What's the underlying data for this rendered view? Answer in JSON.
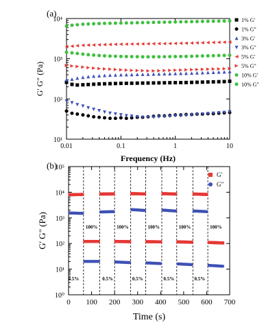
{
  "chart_data": [
    {
      "type": "scatter",
      "panel_label": "(a)",
      "xlabel": "Frequency (Hz)",
      "ylabel": "G' G\" (Pa)",
      "xscale": "log",
      "yscale": "log",
      "xlim": [
        0.01,
        10
      ],
      "ylim": [
        10,
        10000
      ],
      "x_ticks": [
        0.01,
        0.1,
        1,
        10
      ],
      "x_tick_labels": [
        "0.01",
        "0.1",
        "1",
        "10"
      ],
      "y_ticks": [
        10,
        100,
        1000,
        10000
      ],
      "y_tick_labels": [
        "10¹",
        "10²",
        "10³",
        "10⁴"
      ],
      "legend_position": "right",
      "series": [
        {
          "name": "1% G'",
          "marker": "square",
          "color": "#000000",
          "filled": true,
          "x": [
            0.01,
            0.0126,
            0.0158,
            0.02,
            0.0251,
            0.0316,
            0.0398,
            0.0501,
            0.0631,
            0.0794,
            0.1,
            0.126,
            0.158,
            0.2,
            0.251,
            0.316,
            0.398,
            0.501,
            0.631,
            0.794,
            1,
            1.26,
            1.58,
            2,
            2.51,
            3.16,
            3.98,
            5.01,
            6.31,
            7.94,
            10
          ],
          "y": [
            260,
            230,
            222,
            225,
            228,
            232,
            236,
            238,
            240,
            242,
            244,
            245,
            246,
            247,
            248,
            249,
            250,
            251,
            252,
            253,
            254,
            255,
            256,
            258,
            260,
            262,
            264,
            266,
            268,
            270,
            275
          ]
        },
        {
          "name": "1% G\"",
          "marker": "circle",
          "color": "#000000",
          "filled": true,
          "x": [
            0.01,
            0.0126,
            0.0158,
            0.02,
            0.0251,
            0.0316,
            0.0398,
            0.0501,
            0.0631,
            0.0794,
            0.1,
            0.126,
            0.158,
            0.2,
            0.251,
            0.316,
            0.398,
            0.501,
            0.631,
            0.794,
            1,
            1.26,
            1.58,
            2,
            2.51,
            3.16,
            3.98,
            5.01,
            6.31,
            7.94,
            10
          ],
          "y": [
            50,
            44,
            42,
            40,
            38,
            36,
            35,
            34,
            33,
            33,
            34,
            33,
            34,
            35,
            35,
            36,
            37,
            38,
            38,
            39,
            40,
            40,
            41,
            41,
            42,
            42,
            43,
            43,
            44,
            45,
            46
          ]
        },
        {
          "name": "3% G'",
          "marker": "triangle-up",
          "color": "#3f51b5",
          "filled": true,
          "x": [
            0.01,
            0.0126,
            0.0158,
            0.02,
            0.0251,
            0.0316,
            0.0398,
            0.0501,
            0.0631,
            0.0794,
            0.1,
            0.126,
            0.158,
            0.2,
            0.251,
            0.316,
            0.398,
            0.501,
            0.631,
            0.794,
            1,
            1.26,
            1.58,
            2,
            2.51,
            3.16,
            3.98,
            5.01,
            6.31,
            7.94,
            10
          ],
          "y": [
            300,
            310,
            330,
            345,
            360,
            370,
            378,
            385,
            390,
            395,
            400,
            402,
            405,
            408,
            410,
            413,
            416,
            419,
            422,
            425,
            428,
            432,
            436,
            440,
            445,
            450,
            455,
            460,
            465,
            470,
            480
          ]
        },
        {
          "name": "3% G\"",
          "marker": "triangle-down",
          "color": "#3f51b5",
          "filled": true,
          "x": [
            0.01,
            0.0126,
            0.0158,
            0.02,
            0.0251,
            0.0316,
            0.0398,
            0.0501,
            0.0631,
            0.0794,
            0.1,
            0.126,
            0.158,
            0.2,
            0.251,
            0.316,
            0.398,
            0.501,
            0.631,
            0.794,
            1,
            1.26,
            1.58,
            2,
            2.51,
            3.16,
            3.98,
            5.01,
            6.31,
            7.94,
            10
          ],
          "y": [
            88,
            80,
            72,
            66,
            60,
            55,
            51,
            47,
            44,
            42,
            40,
            38,
            37,
            36,
            35,
            35,
            35,
            36,
            36,
            37,
            38,
            38,
            39,
            40,
            41,
            42,
            43,
            44,
            45,
            46,
            48
          ]
        },
        {
          "name": "5% G'",
          "marker": "triangle-left",
          "color": "#e53935",
          "filled": true,
          "x": [
            0.01,
            0.0126,
            0.0158,
            0.02,
            0.0251,
            0.0316,
            0.0398,
            0.0501,
            0.0631,
            0.0794,
            0.1,
            0.126,
            0.158,
            0.2,
            0.251,
            0.316,
            0.398,
            0.501,
            0.631,
            0.794,
            1,
            1.26,
            1.58,
            2,
            2.51,
            3.16,
            3.98,
            5.01,
            6.31,
            7.94,
            10
          ],
          "y": [
            2000,
            2050,
            2100,
            2150,
            2180,
            2200,
            2220,
            2240,
            2260,
            2280,
            2300,
            2310,
            2320,
            2330,
            2340,
            2350,
            2360,
            2370,
            2380,
            2390,
            2400,
            2420,
            2440,
            2460,
            2480,
            2500,
            2520,
            2540,
            2560,
            2580,
            2600
          ]
        },
        {
          "name": "5% G\"",
          "marker": "triangle-right",
          "color": "#e53935",
          "filled": true,
          "x": [
            0.01,
            0.0126,
            0.0158,
            0.02,
            0.0251,
            0.0316,
            0.0398,
            0.0501,
            0.0631,
            0.0794,
            0.1,
            0.126,
            0.158,
            0.2,
            0.251,
            0.316,
            0.398,
            0.501,
            0.631,
            0.794,
            1,
            1.26,
            1.58,
            2,
            2.51,
            3.16,
            3.98,
            5.01,
            6.31,
            7.94,
            10
          ],
          "y": [
            680,
            660,
            640,
            620,
            600,
            585,
            570,
            560,
            550,
            540,
            530,
            522,
            515,
            510,
            505,
            500,
            500,
            505,
            510,
            515,
            520,
            525,
            530,
            535,
            540,
            545,
            550,
            555,
            560,
            565,
            570
          ]
        },
        {
          "name": "10% G'",
          "marker": "circle",
          "color": "#3fbf3f",
          "filled": true,
          "x": [
            0.01,
            0.0126,
            0.0158,
            0.02,
            0.0251,
            0.0316,
            0.0398,
            0.0501,
            0.0631,
            0.0794,
            0.1,
            0.126,
            0.158,
            0.2,
            0.251,
            0.316,
            0.398,
            0.501,
            0.631,
            0.794,
            1,
            1.26,
            1.58,
            2,
            2.51,
            3.16,
            3.98,
            5.01,
            6.31,
            7.94,
            10
          ],
          "y": [
            6500,
            6800,
            7000,
            7200,
            7300,
            7400,
            7500,
            7550,
            7600,
            7650,
            7700,
            7750,
            7800,
            7850,
            7900,
            7950,
            8000,
            8050,
            8100,
            8150,
            8200,
            8250,
            8300,
            8350,
            8400,
            8450,
            8500,
            8550,
            8600,
            8650,
            8700
          ]
        },
        {
          "name": "10% G\"",
          "marker": "circle",
          "color": "#3fbf3f",
          "filled": true,
          "x": [
            0.01,
            0.0126,
            0.0158,
            0.02,
            0.0251,
            0.0316,
            0.0398,
            0.0501,
            0.0631,
            0.0794,
            0.1,
            0.126,
            0.158,
            0.2,
            0.251,
            0.316,
            0.398,
            0.501,
            0.631,
            0.794,
            1,
            1.26,
            1.58,
            2,
            2.51,
            3.16,
            3.98,
            5.01,
            6.31,
            7.94,
            10
          ],
          "y": [
            1450,
            1400,
            1350,
            1300,
            1260,
            1230,
            1200,
            1180,
            1160,
            1150,
            1140,
            1130,
            1125,
            1120,
            1118,
            1115,
            1115,
            1118,
            1120,
            1125,
            1130,
            1135,
            1140,
            1150,
            1160,
            1170,
            1180,
            1190,
            1200,
            1210,
            1220
          ]
        }
      ]
    },
    {
      "type": "scatter",
      "panel_label": "(b)",
      "xlabel": "Time (s)",
      "ylabel": "G' G\" (Pa)",
      "xscale": "linear",
      "yscale": "log",
      "xlim": [
        0,
        700
      ],
      "ylim": [
        1,
        100000
      ],
      "x_ticks": [
        0,
        100,
        200,
        300,
        400,
        500,
        600,
        700
      ],
      "x_tick_labels": [
        "0",
        "100",
        "200",
        "300",
        "400",
        "500",
        "600",
        "700"
      ],
      "y_ticks": [
        1,
        10,
        100,
        1000,
        10000,
        100000
      ],
      "y_tick_labels": [
        "10⁰",
        "10¹",
        "10²",
        "10³",
        "10⁴",
        "10⁵"
      ],
      "legend_position": "top-right",
      "separators_x": [
        65,
        135,
        200,
        270,
        335,
        405,
        470,
        540,
        605
      ],
      "strain_annotations": [
        {
          "text": "0.5%",
          "x": 22,
          "y": 3.6
        },
        {
          "text": "100%",
          "x": 100,
          "y": 380
        },
        {
          "text": "0.5%",
          "x": 170,
          "y": 3.6
        },
        {
          "text": "100%",
          "x": 235,
          "y": 380
        },
        {
          "text": "0.5%",
          "x": 300,
          "y": 3.6
        },
        {
          "text": "100%",
          "x": 370,
          "y": 380
        },
        {
          "text": "0.5%",
          "x": 436,
          "y": 3.6
        },
        {
          "text": "100%",
          "x": 505,
          "y": 380
        },
        {
          "text": "0.5%",
          "x": 570,
          "y": 3.6
        },
        {
          "text": "100%",
          "x": 640,
          "y": 380
        }
      ],
      "series": [
        {
          "name": "G'",
          "marker": "square",
          "color": "#e53935",
          "segments": [
            {
              "x": [
                5,
                60
              ],
              "y": [
                8000,
                8200
              ]
            },
            {
              "x": [
                70,
                130
              ],
              "y": [
                120,
                120
              ]
            },
            {
              "x": [
                140,
                195
              ],
              "y": [
                8500,
                8600
              ]
            },
            {
              "x": [
                205,
                265
              ],
              "y": [
                120,
                118
              ]
            },
            {
              "x": [
                275,
                330
              ],
              "y": [
                8800,
                8600
              ]
            },
            {
              "x": [
                340,
                400
              ],
              "y": [
                118,
                116
              ]
            },
            {
              "x": [
                410,
                465
              ],
              "y": [
                8800,
                8500
              ]
            },
            {
              "x": [
                475,
                535
              ],
              "y": [
                116,
                112
              ]
            },
            {
              "x": [
                545,
                600
              ],
              "y": [
                8500,
                8200
              ]
            },
            {
              "x": [
                610,
                670
              ],
              "y": [
                110,
                105
              ]
            }
          ]
        },
        {
          "name": "G\"",
          "marker": "circle",
          "color": "#3f51b5",
          "segments": [
            {
              "x": [
                5,
                60
              ],
              "y": [
                1550,
                1500
              ]
            },
            {
              "x": [
                70,
                130
              ],
              "y": [
                20,
                20
              ]
            },
            {
              "x": [
                140,
                195
              ],
              "y": [
                1700,
                1750
              ]
            },
            {
              "x": [
                205,
                265
              ],
              "y": [
                19,
                18
              ]
            },
            {
              "x": [
                275,
                330
              ],
              "y": [
                2100,
                1950
              ]
            },
            {
              "x": [
                340,
                400
              ],
              "y": [
                17.5,
                16.5
              ]
            },
            {
              "x": [
                410,
                465
              ],
              "y": [
                2000,
                1850
              ]
            },
            {
              "x": [
                475,
                535
              ],
              "y": [
                16,
                15
              ]
            },
            {
              "x": [
                545,
                600
              ],
              "y": [
                1850,
                1750
              ]
            },
            {
              "x": [
                610,
                670
              ],
              "y": [
                14,
                13
              ]
            }
          ]
        }
      ]
    }
  ]
}
